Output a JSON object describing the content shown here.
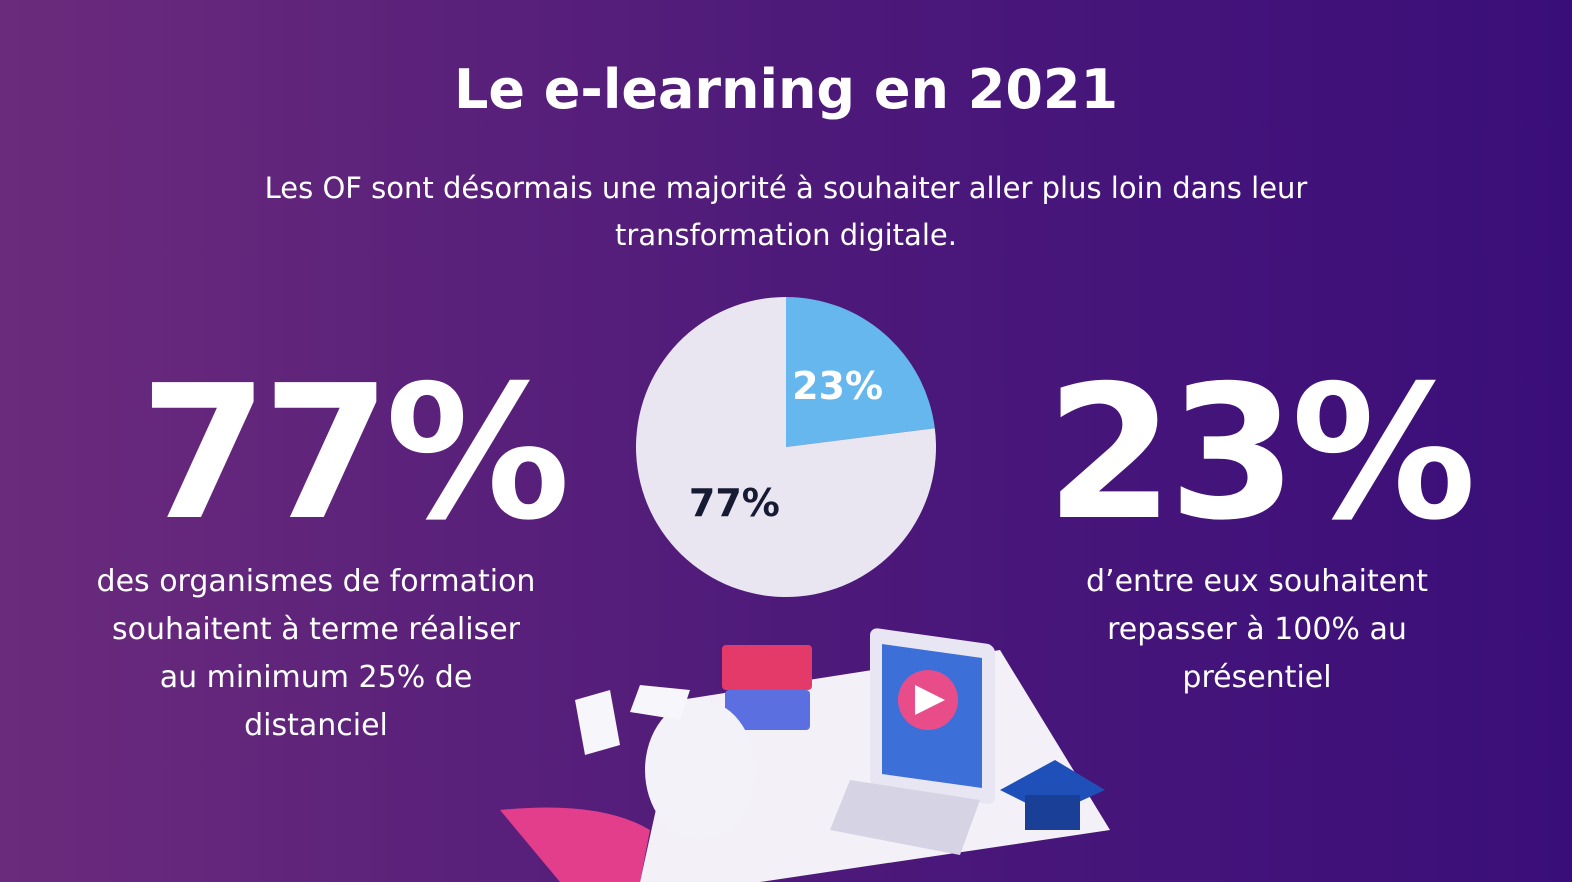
{
  "chart_data": {
    "type": "pie",
    "title": "Le e-learning en 2021",
    "subtitle": "Les OF sont désormais une majorité à souhaiter aller plus loin dans leur transformation digitale.",
    "values": [
      77,
      23
    ],
    "value_labels": [
      "77%",
      "23%"
    ],
    "colors": [
      "#e9e5f1",
      "#65b7ee"
    ],
    "label_colors": [
      "#161a33",
      "#ffffff"
    ],
    "annotations": [
      "des organismes de formation souhaitent à terme réaliser au minimum 25% de distanciel",
      "d’entre eux souhaitent repasser à 100% au présentiel"
    ]
  }
}
